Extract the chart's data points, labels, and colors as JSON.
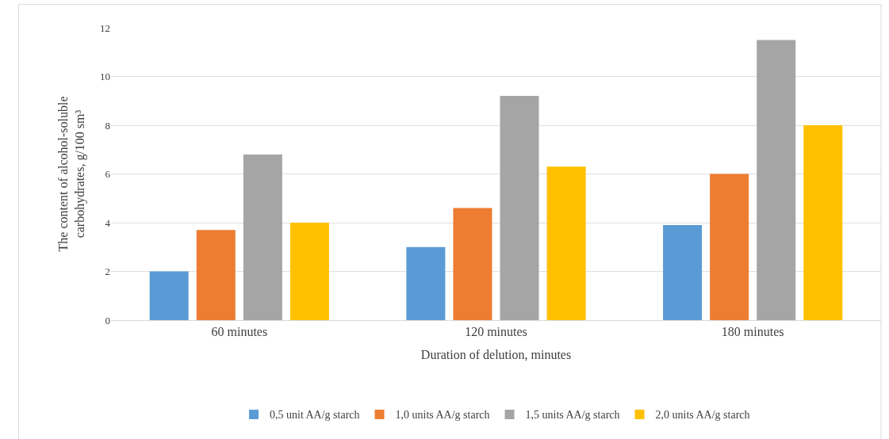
{
  "chart_data": {
    "type": "bar",
    "categories": [
      "60 minutes",
      "120 minutes",
      "180 minutes"
    ],
    "xlabel": "Duration of delution, minutes",
    "ylabel": "The content of alcohol-soluble\ncarbohydrates, g/100 sm³",
    "series": [
      {
        "name": "0,5 unit AA/g starch",
        "color": "#5b9bd5",
        "values": [
          2.0,
          3.0,
          3.9
        ]
      },
      {
        "name": "1,0 units AA/g starch",
        "color": "#ed7d31",
        "values": [
          3.7,
          4.6,
          6.0
        ]
      },
      {
        "name": "1,5 units AA/g starch",
        "color": "#a5a5a5",
        "values": [
          6.8,
          9.2,
          11.5
        ]
      },
      {
        "name": "2,0 units AA/g starch",
        "color": "#ffc000",
        "values": [
          4.0,
          6.3,
          8.0
        ]
      }
    ],
    "ylim": [
      0,
      12
    ],
    "yticks": [
      0,
      2,
      4,
      6,
      8,
      10,
      12
    ],
    "grid": "y",
    "legend": "bottom"
  }
}
